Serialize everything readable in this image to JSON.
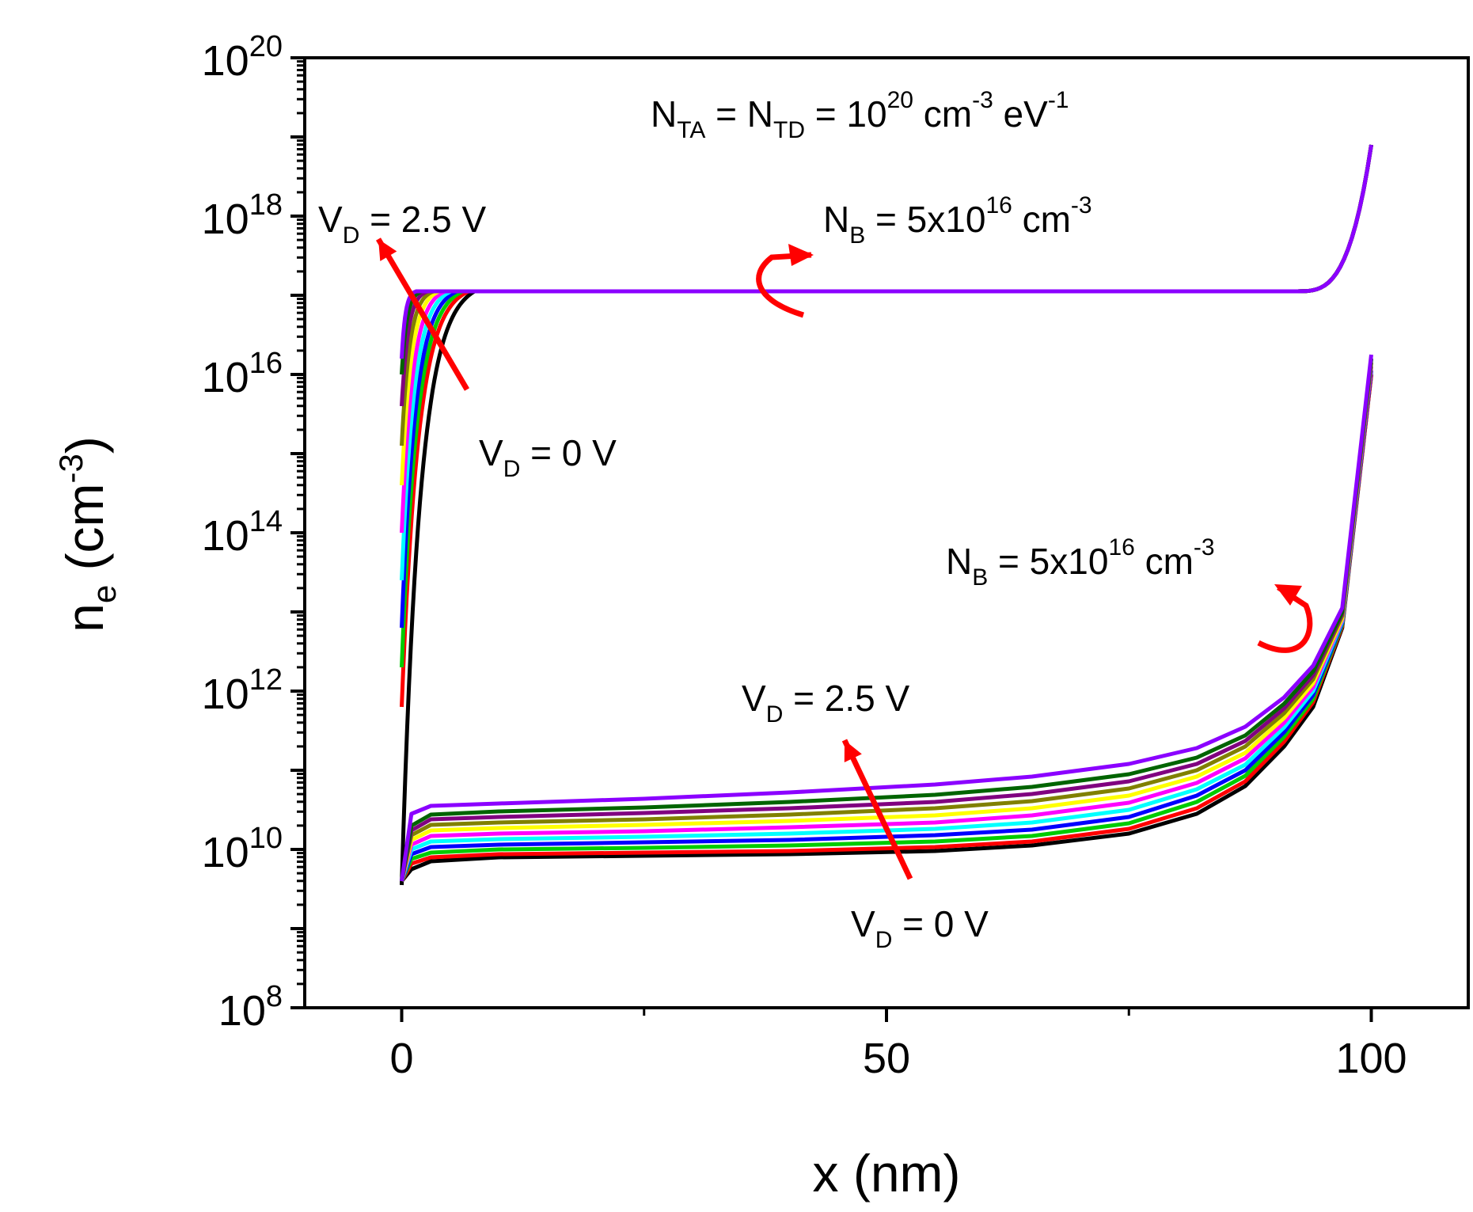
{
  "chart_data": {
    "type": "line",
    "title": "",
    "xlabel": "x (nm)",
    "ylabel": {
      "base": "n",
      "sub": "e",
      "unit": "(cm",
      "sup": "-3",
      "close": ")"
    },
    "x_range": [
      -10,
      110
    ],
    "y_log_range": [
      8,
      20
    ],
    "x_ticks": [
      0,
      50,
      100
    ],
    "y_ticks": [
      {
        "base": "10",
        "exp": "8",
        "value": 8
      },
      {
        "base": "10",
        "exp": "10",
        "value": 10
      },
      {
        "base": "10",
        "exp": "12",
        "value": 12
      },
      {
        "base": "10",
        "exp": "14",
        "value": 14
      },
      {
        "base": "10",
        "exp": "16",
        "value": 16
      },
      {
        "base": "10",
        "exp": "18",
        "value": 18
      },
      {
        "base": "10",
        "exp": "20",
        "value": 20
      }
    ],
    "series_colors": [
      "#000000",
      "#ff0000",
      "#00cc00",
      "#0000ff",
      "#00ffff",
      "#ff00ff",
      "#ffff00",
      "#808000",
      "#800080",
      "#006400",
      "#8b00ff"
    ],
    "upper_family": {
      "description": "n_e profiles, N_B = 5x10^16 cm^-3 (upper curves)",
      "start_log_values": [
        9.55,
        11.8,
        12.3,
        12.8,
        13.4,
        14.0,
        14.6,
        15.1,
        15.6,
        16.0,
        16.2
      ],
      "plateau_log": 17.05,
      "end_log": 18.9,
      "x_end": 100
    },
    "lower_family": {
      "description": "n_e profiles, N_B = 5x10^16 cm^-3 (lower curves)",
      "start_log": 9.6,
      "x_end": 100,
      "points_x": [
        0,
        1,
        3,
        10,
        25,
        40,
        55,
        65,
        75,
        82,
        87,
        91,
        94,
        97,
        100
      ],
      "series_log": [
        [
          9.6,
          9.75,
          9.85,
          9.9,
          9.92,
          9.94,
          9.98,
          10.05,
          10.2,
          10.45,
          10.8,
          11.3,
          11.8,
          12.8,
          16.0
        ],
        [
          9.6,
          9.82,
          9.9,
          9.94,
          9.96,
          9.98,
          10.03,
          10.1,
          10.26,
          10.52,
          10.86,
          11.36,
          11.86,
          12.82,
          16.0
        ],
        [
          9.6,
          9.88,
          9.96,
          10.0,
          10.02,
          10.05,
          10.1,
          10.17,
          10.33,
          10.6,
          10.93,
          11.42,
          11.9,
          12.84,
          16.05
        ],
        [
          9.6,
          9.94,
          10.03,
          10.06,
          10.09,
          10.12,
          10.18,
          10.25,
          10.41,
          10.68,
          11.0,
          11.48,
          11.95,
          12.86,
          16.05
        ],
        [
          9.6,
          10.0,
          10.1,
          10.13,
          10.16,
          10.2,
          10.26,
          10.34,
          10.5,
          10.76,
          11.07,
          11.54,
          12.0,
          12.88,
          16.1
        ],
        [
          9.6,
          10.06,
          10.17,
          10.2,
          10.23,
          10.28,
          10.34,
          10.43,
          10.59,
          10.84,
          11.15,
          11.6,
          12.05,
          12.9,
          16.1
        ],
        [
          9.6,
          10.12,
          10.24,
          10.27,
          10.31,
          10.36,
          10.43,
          10.52,
          10.68,
          10.92,
          11.22,
          11.66,
          12.1,
          12.92,
          16.15
        ],
        [
          9.6,
          10.18,
          10.31,
          10.34,
          10.38,
          10.44,
          10.52,
          10.61,
          10.77,
          11.0,
          11.3,
          11.72,
          12.15,
          12.95,
          16.15
        ],
        [
          9.6,
          10.24,
          10.38,
          10.41,
          10.46,
          10.52,
          10.6,
          10.7,
          10.86,
          11.08,
          11.37,
          11.78,
          12.2,
          12.98,
          16.2
        ],
        [
          9.6,
          10.3,
          10.44,
          10.48,
          10.53,
          10.6,
          10.69,
          10.79,
          10.95,
          11.16,
          11.44,
          11.84,
          12.25,
          13.0,
          16.2
        ],
        [
          9.6,
          10.45,
          10.55,
          10.58,
          10.64,
          10.72,
          10.82,
          10.92,
          11.08,
          11.28,
          11.55,
          11.92,
          12.32,
          13.05,
          16.25
        ]
      ]
    },
    "annotations": {
      "top": {
        "n1": "N",
        "s1": "TA",
        "eq1": " = N",
        "s2": "TD",
        "eq2": " = 10",
        "e1": "20",
        "unit": " cm",
        "e2": "-3",
        "ev": " eV",
        "e3": "-1"
      },
      "upper_nb": {
        "n": "N",
        "sub": "B",
        "text": " = 5x10",
        "exp": "16",
        "unit": " cm",
        "exp2": "-3"
      },
      "upper_vd_high": {
        "v": "V",
        "sub": "D",
        "text": " = 2.5 V"
      },
      "upper_vd_low": {
        "v": "V",
        "sub": "D",
        "text": " = 0 V"
      },
      "lower_nb": {
        "n": "N",
        "sub": "B",
        "text": " = 5x10",
        "exp": "16",
        "unit": " cm",
        "exp2": "-3"
      },
      "lower_vd_high": {
        "v": "V",
        "sub": "D",
        "text": " = 2.5 V"
      },
      "lower_vd_low": {
        "v": "V",
        "sub": "D",
        "text": " = 0 V"
      }
    },
    "arrow_color": "#ff0000"
  }
}
